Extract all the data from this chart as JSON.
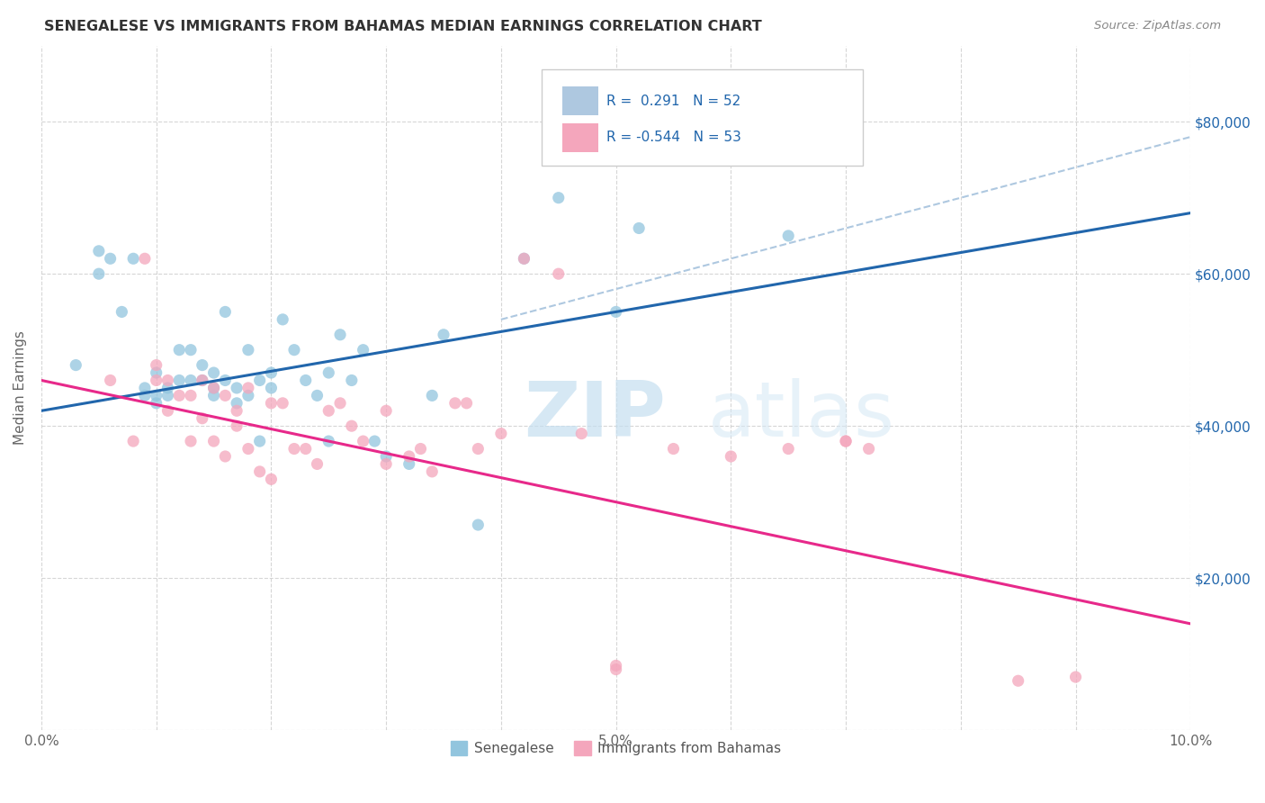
{
  "title": "SENEGALESE VS IMMIGRANTS FROM BAHAMAS MEDIAN EARNINGS CORRELATION CHART",
  "source": "Source: ZipAtlas.com",
  "ylabel_label": "Median Earnings",
  "x_min": 0.0,
  "x_max": 0.1,
  "y_min": 0,
  "y_max": 90000,
  "y_ticks": [
    0,
    20000,
    40000,
    60000,
    80000
  ],
  "right_y_tick_labels": [
    "",
    "$20,000",
    "$40,000",
    "$60,000",
    "$80,000"
  ],
  "x_ticks": [
    0.0,
    0.01,
    0.02,
    0.03,
    0.04,
    0.05,
    0.06,
    0.07,
    0.08,
    0.09,
    0.1
  ],
  "x_tick_labels": [
    "0.0%",
    "",
    "",
    "",
    "",
    "5.0%",
    "",
    "",
    "",
    "",
    "10.0%"
  ],
  "blue_scatter_color": "#92c5de",
  "pink_scatter_color": "#f4a6bc",
  "blue_line_color": "#2166ac",
  "pink_line_color": "#e7298a",
  "dashed_line_color": "#aec8e0",
  "legend_box_blue": "#aec8e0",
  "legend_box_pink": "#f4a6bc",
  "legend_text_color": "#2166ac",
  "R_blue": 0.291,
  "N_blue": 52,
  "R_pink": -0.544,
  "N_pink": 53,
  "legend_label_blue": "Senegalese",
  "legend_label_pink": "Immigrants from Bahamas",
  "watermark_zip": "ZIP",
  "watermark_atlas": "atlas",
  "blue_line_x0": 0.0,
  "blue_line_x1": 0.1,
  "blue_line_y0": 42000,
  "blue_line_y1": 68000,
  "pink_line_x0": 0.0,
  "pink_line_x1": 0.1,
  "pink_line_y0": 46000,
  "pink_line_y1": 14000,
  "dash_line_x0": 0.04,
  "dash_line_x1": 0.1,
  "dash_line_y0": 54000,
  "dash_line_y1": 78000,
  "blue_scatter_x": [
    0.003,
    0.005,
    0.005,
    0.006,
    0.007,
    0.008,
    0.009,
    0.009,
    0.01,
    0.01,
    0.01,
    0.011,
    0.011,
    0.012,
    0.012,
    0.013,
    0.013,
    0.014,
    0.014,
    0.015,
    0.015,
    0.015,
    0.016,
    0.016,
    0.017,
    0.017,
    0.018,
    0.018,
    0.019,
    0.019,
    0.02,
    0.02,
    0.021,
    0.022,
    0.023,
    0.024,
    0.025,
    0.025,
    0.026,
    0.027,
    0.028,
    0.029,
    0.03,
    0.032,
    0.034,
    0.035,
    0.038,
    0.042,
    0.045,
    0.05,
    0.052,
    0.065
  ],
  "blue_scatter_y": [
    48000,
    63000,
    60000,
    62000,
    55000,
    62000,
    45000,
    44000,
    47000,
    44000,
    43000,
    45000,
    44000,
    50000,
    46000,
    50000,
    46000,
    46000,
    48000,
    47000,
    45000,
    44000,
    55000,
    46000,
    45000,
    43000,
    50000,
    44000,
    46000,
    38000,
    47000,
    45000,
    54000,
    50000,
    46000,
    44000,
    47000,
    38000,
    52000,
    46000,
    50000,
    38000,
    36000,
    35000,
    44000,
    52000,
    27000,
    62000,
    70000,
    55000,
    66000,
    65000
  ],
  "pink_scatter_x": [
    0.006,
    0.008,
    0.009,
    0.01,
    0.01,
    0.011,
    0.011,
    0.012,
    0.013,
    0.013,
    0.014,
    0.014,
    0.015,
    0.015,
    0.016,
    0.016,
    0.017,
    0.017,
    0.018,
    0.018,
    0.019,
    0.02,
    0.02,
    0.021,
    0.022,
    0.023,
    0.024,
    0.025,
    0.026,
    0.027,
    0.028,
    0.03,
    0.03,
    0.032,
    0.033,
    0.034,
    0.036,
    0.037,
    0.038,
    0.04,
    0.042,
    0.045,
    0.047,
    0.05,
    0.05,
    0.055,
    0.06,
    0.065,
    0.07,
    0.07,
    0.072,
    0.085,
    0.09
  ],
  "pink_scatter_y": [
    46000,
    38000,
    62000,
    48000,
    46000,
    46000,
    42000,
    44000,
    44000,
    38000,
    46000,
    41000,
    45000,
    38000,
    44000,
    36000,
    40000,
    42000,
    37000,
    45000,
    34000,
    43000,
    33000,
    43000,
    37000,
    37000,
    35000,
    42000,
    43000,
    40000,
    38000,
    35000,
    42000,
    36000,
    37000,
    34000,
    43000,
    43000,
    37000,
    39000,
    62000,
    60000,
    39000,
    8000,
    8500,
    37000,
    36000,
    37000,
    38000,
    38000,
    37000,
    6500,
    7000
  ]
}
